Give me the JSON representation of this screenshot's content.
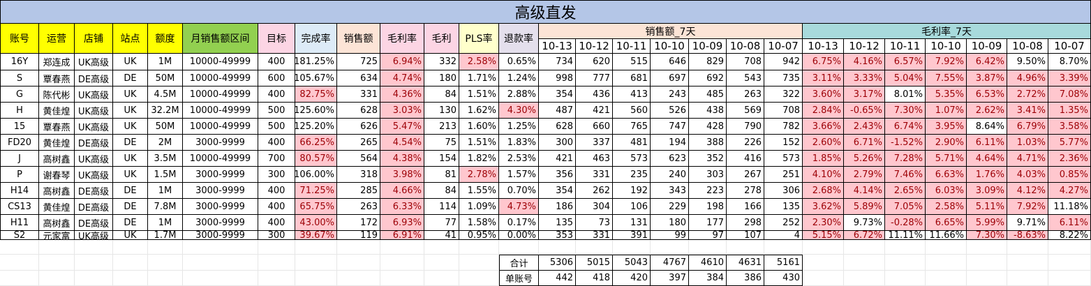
{
  "title": "高级直发",
  "columns": [
    "账号",
    "运营",
    "店铺",
    "站点",
    "额度",
    "月销售额区间",
    "目标",
    "完成率",
    "销售额",
    "毛利率",
    "毛利",
    "PLS率",
    "退款率"
  ],
  "sales_group_label": "销售额_7天",
  "margin_group_label": "毛利率_7天",
  "dates": [
    "10-13",
    "10-12",
    "10-11",
    "10-10",
    "10-09",
    "10-08",
    "10-07"
  ],
  "rows": [
    {
      "account": "16Y",
      "operator": "郑连成",
      "store": "UK高级",
      "site": "UK",
      "quota": "1M",
      "range": "10000-49999",
      "target": "400",
      "completion": "181.25%",
      "sales": "725",
      "margin_rate": "6.94%",
      "profit": "332",
      "pls": "2.58%",
      "refund": "0.65%",
      "sales7": [
        "734",
        "620",
        "515",
        "646",
        "829",
        "708",
        "942"
      ],
      "margin7": [
        "6.75%",
        "4.16%",
        "6.57%",
        "7.92%",
        "6.42%",
        "9.50%",
        "8.70%"
      ],
      "flags": {
        "completion": false,
        "margin_rate": true,
        "pls": true,
        "refund": false
      },
      "margin7_flags": [
        true,
        true,
        true,
        true,
        true,
        false,
        false
      ]
    },
    {
      "account": "S",
      "operator": "覃春燕",
      "store": "DE高级",
      "site": "DE",
      "quota": "50M",
      "range": "10000-49999",
      "target": "600",
      "completion": "105.67%",
      "sales": "634",
      "margin_rate": "4.74%",
      "profit": "180",
      "pls": "1.71%",
      "refund": "1.24%",
      "sales7": [
        "998",
        "777",
        "681",
        "697",
        "692",
        "543",
        "735"
      ],
      "margin7": [
        "3.11%",
        "3.33%",
        "5.04%",
        "7.55%",
        "3.87%",
        "4.96%",
        "3.39%"
      ],
      "flags": {
        "completion": false,
        "margin_rate": true,
        "pls": false,
        "refund": false
      },
      "margin7_flags": [
        true,
        true,
        true,
        true,
        true,
        true,
        true
      ]
    },
    {
      "account": "G",
      "operator": "陈代彬",
      "store": "UK高级",
      "site": "UK",
      "quota": "4.5M",
      "range": "10000-49999",
      "target": "400",
      "completion": "82.75%",
      "sales": "331",
      "margin_rate": "4.36%",
      "profit": "84",
      "pls": "1.51%",
      "refund": "2.88%",
      "sales7": [
        "354",
        "436",
        "413",
        "243",
        "485",
        "263",
        "322"
      ],
      "margin7": [
        "3.60%",
        "3.17%",
        "8.01%",
        "5.35%",
        "6.53%",
        "2.72%",
        "7.08%"
      ],
      "flags": {
        "completion": true,
        "margin_rate": true,
        "pls": false,
        "refund": false
      },
      "margin7_flags": [
        true,
        true,
        false,
        true,
        true,
        true,
        true
      ]
    },
    {
      "account": "H",
      "operator": "黄佳煌",
      "store": "UK高级",
      "site": "UK",
      "quota": "32.2M",
      "range": "10000-49999",
      "target": "500",
      "completion": "125.60%",
      "sales": "628",
      "margin_rate": "3.03%",
      "profit": "130",
      "pls": "1.62%",
      "refund": "4.30%",
      "sales7": [
        "487",
        "421",
        "560",
        "526",
        "438",
        "569",
        "708"
      ],
      "margin7": [
        "2.84%",
        "-0.65%",
        "7.30%",
        "1.07%",
        "2.62%",
        "3.41%",
        "1.35%"
      ],
      "flags": {
        "completion": false,
        "margin_rate": true,
        "pls": false,
        "refund": true
      },
      "margin7_flags": [
        true,
        true,
        true,
        true,
        true,
        true,
        true
      ]
    },
    {
      "account": "15",
      "operator": "覃春燕",
      "store": "UK高级",
      "site": "UK",
      "quota": "50M",
      "range": "10000-49999",
      "target": "500",
      "completion": "125.20%",
      "sales": "626",
      "margin_rate": "5.47%",
      "profit": "213",
      "pls": "1.60%",
      "refund": "1.25%",
      "sales7": [
        "628",
        "660",
        "765",
        "747",
        "428",
        "790",
        "782"
      ],
      "margin7": [
        "3.66%",
        "2.43%",
        "6.74%",
        "3.95%",
        "8.64%",
        "6.79%",
        "3.58%"
      ],
      "flags": {
        "completion": false,
        "margin_rate": true,
        "pls": false,
        "refund": false
      },
      "margin7_flags": [
        true,
        true,
        true,
        true,
        false,
        true,
        true
      ]
    },
    {
      "account": "FD20",
      "operator": "黄佳煌",
      "store": "DE高级",
      "site": "DE",
      "quota": "2M",
      "range": "3000-9999",
      "target": "400",
      "completion": "66.25%",
      "sales": "265",
      "margin_rate": "4.54%",
      "profit": "75",
      "pls": "1.51%",
      "refund": "1.83%",
      "sales7": [
        "300",
        "337",
        "481",
        "194",
        "388",
        "226",
        "152"
      ],
      "margin7": [
        "2.60%",
        "6.71%",
        "-1.52%",
        "2.90%",
        "6.11%",
        "1.03%",
        "5.77%"
      ],
      "flags": {
        "completion": true,
        "margin_rate": true,
        "pls": false,
        "refund": false
      },
      "margin7_flags": [
        true,
        true,
        true,
        true,
        true,
        true,
        true
      ]
    },
    {
      "account": "J",
      "operator": "高树鑫",
      "store": "UK高级",
      "site": "UK",
      "quota": "3.5M",
      "range": "10000-49999",
      "target": "700",
      "completion": "80.57%",
      "sales": "564",
      "margin_rate": "4.38%",
      "profit": "154",
      "pls": "1.82%",
      "refund": "2.53%",
      "sales7": [
        "421",
        "463",
        "573",
        "623",
        "352",
        "416",
        "573"
      ],
      "margin7": [
        "1.85%",
        "5.26%",
        "7.28%",
        "5.71%",
        "4.64%",
        "4.71%",
        "2.36%"
      ],
      "flags": {
        "completion": true,
        "margin_rate": true,
        "pls": false,
        "refund": false
      },
      "margin7_flags": [
        true,
        true,
        true,
        true,
        true,
        true,
        true
      ]
    },
    {
      "account": "P",
      "operator": "谢春琴",
      "store": "UK高级",
      "site": "UK",
      "quota": "1.5M",
      "range": "3000-9999",
      "target": "300",
      "completion": "106.00%",
      "sales": "318",
      "margin_rate": "3.98%",
      "profit": "81",
      "pls": "2.78%",
      "refund": "1.57%",
      "sales7": [
        "356",
        "331",
        "235",
        "240",
        "303",
        "267",
        "251"
      ],
      "margin7": [
        "4.10%",
        "2.79%",
        "7.46%",
        "6.63%",
        "1.76%",
        "4.03%",
        "0.85%"
      ],
      "flags": {
        "completion": false,
        "margin_rate": true,
        "pls": true,
        "refund": false
      },
      "margin7_flags": [
        true,
        true,
        true,
        true,
        true,
        true,
        true
      ]
    },
    {
      "account": "H14",
      "operator": "高树鑫",
      "store": "DE高级",
      "site": "DE",
      "quota": "1M",
      "range": "3000-9999",
      "target": "400",
      "completion": "71.25%",
      "sales": "285",
      "margin_rate": "4.66%",
      "profit": "84",
      "pls": "1.55%",
      "refund": "0.70%",
      "sales7": [
        "354",
        "262",
        "192",
        "343",
        "223",
        "278",
        "306"
      ],
      "margin7": [
        "2.68%",
        "4.14%",
        "2.65%",
        "6.03%",
        "3.09%",
        "4.12%",
        "4.27%"
      ],
      "flags": {
        "completion": true,
        "margin_rate": true,
        "pls": false,
        "refund": false
      },
      "margin7_flags": [
        true,
        true,
        true,
        true,
        true,
        true,
        true
      ]
    },
    {
      "account": "CS13",
      "operator": "黄佳煌",
      "store": "DE高级",
      "site": "DE",
      "quota": "7.8M",
      "range": "3000-9999",
      "target": "400",
      "completion": "65.75%",
      "sales": "263",
      "margin_rate": "6.33%",
      "profit": "114",
      "pls": "1.09%",
      "refund": "4.73%",
      "sales7": [
        "186",
        "304",
        "106",
        "229",
        "198",
        "166",
        "135"
      ],
      "margin7": [
        "3.62%",
        "5.89%",
        "7.05%",
        "2.58%",
        "5.11%",
        "7.92%",
        "11.18%"
      ],
      "flags": {
        "completion": true,
        "margin_rate": true,
        "pls": false,
        "refund": true
      },
      "margin7_flags": [
        true,
        true,
        true,
        true,
        true,
        true,
        false
      ]
    },
    {
      "account": "H11",
      "operator": "高树鑫",
      "store": "DE高级",
      "site": "DE",
      "quota": "1M",
      "range": "3000-9999",
      "target": "400",
      "completion": "43.00%",
      "sales": "172",
      "margin_rate": "6.93%",
      "profit": "77",
      "pls": "1.58%",
      "refund": "0.17%",
      "sales7": [
        "135",
        "73",
        "131",
        "180",
        "177",
        "298",
        "252"
      ],
      "margin7": [
        "2.30%",
        "9.73%",
        "-0.28%",
        "6.65%",
        "5.99%",
        "9.71%",
        "6.11%"
      ],
      "flags": {
        "completion": true,
        "margin_rate": true,
        "pls": false,
        "refund": false
      },
      "margin7_flags": [
        true,
        false,
        true,
        true,
        true,
        false,
        true
      ]
    },
    {
      "account": "S2",
      "operator": "元家富",
      "store": "UK高级",
      "site": "UK",
      "quota": "1.7M",
      "range": "3000-9999",
      "target": "300",
      "completion": "39.67%",
      "sales": "119",
      "margin_rate": "6.91%",
      "profit": "41",
      "pls": "0.95%",
      "refund": "0.00%",
      "sales7": [
        "353",
        "331",
        "391",
        "99",
        "97",
        "107",
        "4"
      ],
      "margin7": [
        "5.15%",
        "6.72%",
        "11.11%",
        "11.66%",
        "7.30%",
        "-8.63%",
        "8.22%"
      ],
      "flags": {
        "completion": true,
        "margin_rate": true,
        "pls": false,
        "refund": false
      },
      "margin7_flags": [
        true,
        true,
        false,
        false,
        true,
        true,
        false
      ]
    }
  ],
  "summary": {
    "total_label": "合计",
    "total": [
      "5306",
      "5015",
      "5043",
      "4767",
      "4610",
      "4631",
      "5161"
    ],
    "per_account_label": "单账号",
    "per_account": [
      "442",
      "418",
      "420",
      "397",
      "384",
      "386",
      "430"
    ]
  },
  "colors": {
    "title_bg": "#b4c6e7",
    "yellow": "#ffff00",
    "green": "#92d050",
    "pink": "#fcd5e4",
    "lightblue": "#ddebf7",
    "cream": "#ffffcc",
    "lavender": "#e4dfec",
    "sales_group": "#fce4d6",
    "margin_group": "#a8dadc",
    "flag_bg": "#ffc7ce",
    "flag_fg": "#9c0006"
  }
}
